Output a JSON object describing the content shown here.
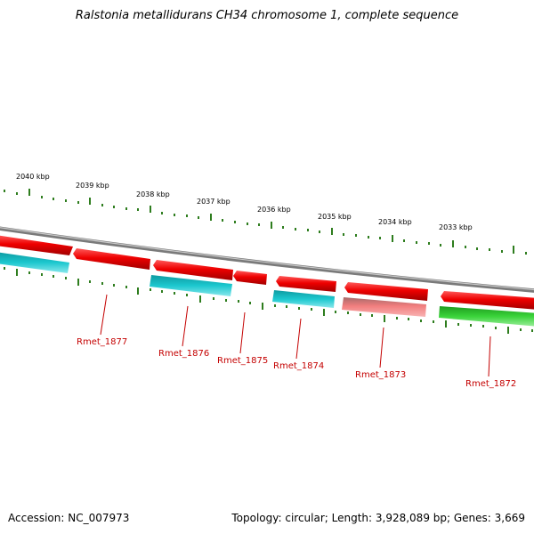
{
  "title": "Ralstonia metallidurans CH34 chromosome 1, complete sequence",
  "footer": {
    "accession": "Accession: NC_007973",
    "summary": "Topology: circular; Length: 3,928,089 bp; Genes: 3,669"
  },
  "ticks": [
    {
      "label": "2040 kbp"
    },
    {
      "label": "2039 kbp"
    },
    {
      "label": "2038 kbp"
    },
    {
      "label": "2037 kbp"
    },
    {
      "label": "2036 kbp"
    },
    {
      "label": "2035 kbp"
    },
    {
      "label": "2034 kbp"
    },
    {
      "label": "2033 kbp"
    }
  ],
  "gene_labels": [
    "Rmet_1877",
    "Rmet_1876",
    "Rmet_1875",
    "Rmet_1874",
    "Rmet_1873",
    "Rmet_1872"
  ],
  "colors": {
    "tick_green": "#2e7d1e",
    "backbone": "#8a8a8a",
    "feature_red": "#e00000",
    "feature_cyan": "#16c2c9",
    "feature_pink": "#f07b7b",
    "feature_green": "#33cc33",
    "label_red": "#c40000"
  }
}
